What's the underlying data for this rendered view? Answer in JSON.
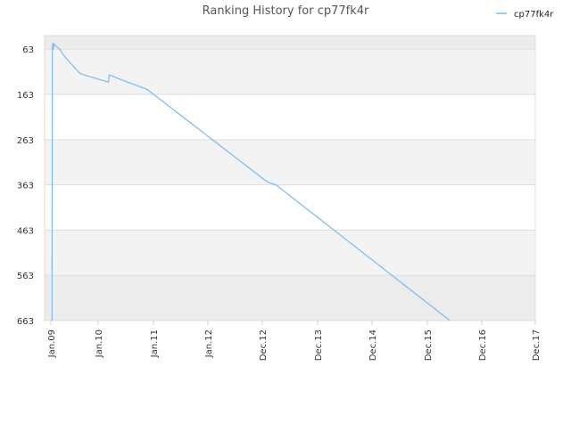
{
  "chart_data": {
    "type": "line",
    "title": "Ranking History for cp77fk4r",
    "xlabel": "",
    "ylabel": "",
    "y_inverted": true,
    "ylim": [
      663,
      33
    ],
    "y_ticks": [
      63,
      163,
      263,
      363,
      463,
      563,
      663
    ],
    "x_ticks": [
      "Jan.09",
      "Jan.10",
      "Jan.11",
      "Jan.12",
      "Dec.12",
      "Dec.13",
      "Dec.14",
      "Dec.15",
      "Dec.16",
      "Dec.17"
    ],
    "grid": true,
    "legend_position": "top-right",
    "series": [
      {
        "name": "cp77fk4r",
        "color": "#7db9ee",
        "points": [
          [
            "2009-01-10",
            663
          ],
          [
            "2009-01-13",
            63
          ],
          [
            "2009-01-16",
            50
          ],
          [
            "2009-01-20",
            63
          ],
          [
            "2009-01-23",
            51
          ],
          [
            "2009-02-05",
            55
          ],
          [
            "2009-03-10",
            63
          ],
          [
            "2009-04-05",
            74
          ],
          [
            "2009-04-20",
            80
          ],
          [
            "2009-06-15",
            98
          ],
          [
            "2009-08-15",
            117
          ],
          [
            "2010-03-10",
            136
          ],
          [
            "2010-03-15",
            120
          ],
          [
            "2010-03-25",
            121
          ],
          [
            "2010-05-15",
            128
          ],
          [
            "2010-10-20",
            148
          ],
          [
            "2010-11-20",
            152
          ],
          [
            "2012-12-20",
            353
          ],
          [
            "2013-01-15",
            358
          ],
          [
            "2013-03-01",
            363
          ],
          [
            "2016-05-01",
            663
          ]
        ]
      }
    ]
  }
}
